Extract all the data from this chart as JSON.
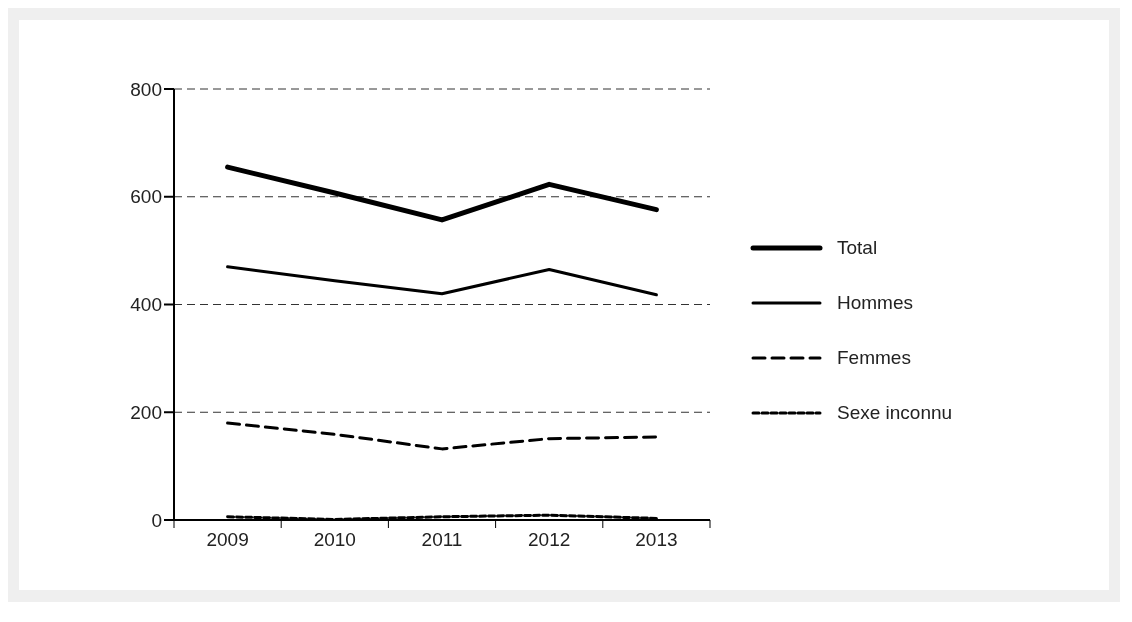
{
  "chart_data": {
    "type": "line",
    "categories": [
      "2009",
      "2010",
      "2011",
      "2012",
      "2013"
    ],
    "series": [
      {
        "name": "Total",
        "color": "#000000",
        "line_style": "solid",
        "values": [
          655,
          607,
          557,
          623,
          576
        ]
      },
      {
        "name": "Hommes",
        "color": "#000000",
        "line_style": "solid",
        "values": [
          470,
          444,
          420,
          465,
          418
        ]
      },
      {
        "name": "Femmes",
        "color": "#000000",
        "line_style": "dashed",
        "values": [
          180,
          159,
          132,
          151,
          154
        ]
      },
      {
        "name": "Sexe inconnu",
        "color": "#000000",
        "line_style": "dotted",
        "values": [
          6,
          1,
          6,
          9,
          3
        ]
      }
    ],
    "ylim": [
      0,
      800
    ],
    "yticks": [
      0,
      200,
      400,
      600,
      800
    ],
    "grid": "y",
    "legend": "right",
    "marker": "none"
  }
}
